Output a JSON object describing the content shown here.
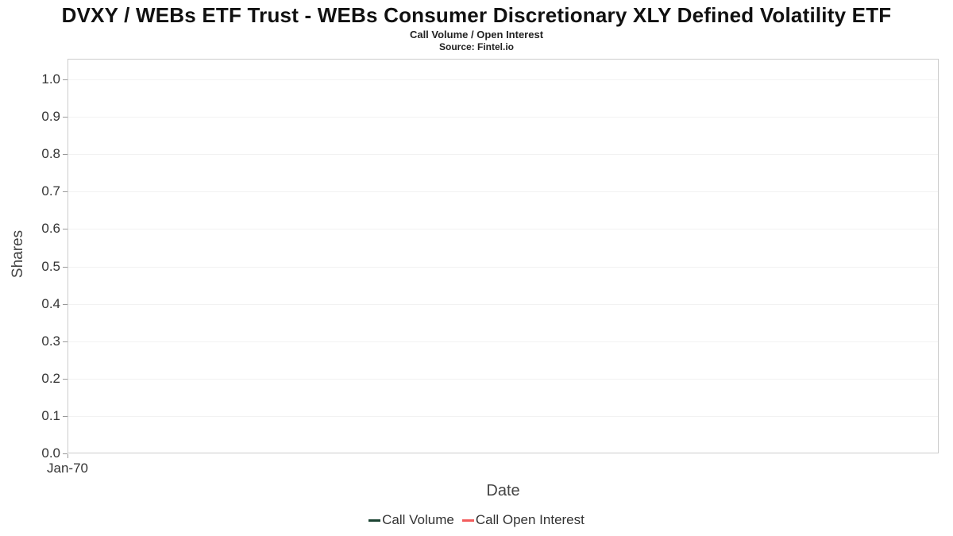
{
  "chart_data": {
    "type": "line",
    "title": "DVXY / WEBs ETF Trust - WEBs Consumer Discretionary XLY Defined Volatility ETF",
    "subtitle": "Call Volume / Open Interest",
    "source": "Source: Fintel.io",
    "xlabel": "Date",
    "ylabel": "Shares",
    "x_ticks": [
      "Jan-70"
    ],
    "y_ticks": [
      "1.0",
      "0.9",
      "0.8",
      "0.7",
      "0.6",
      "0.5",
      "0.4",
      "0.3",
      "0.2",
      "0.1",
      "0.0"
    ],
    "ylim": [
      0.0,
      1.05
    ],
    "grid": true,
    "legend_position": "bottom",
    "series": [
      {
        "name": "Call Volume",
        "color": "#1b4332",
        "values": []
      },
      {
        "name": "Call Open Interest",
        "color": "#f25c5c",
        "values": []
      }
    ]
  }
}
